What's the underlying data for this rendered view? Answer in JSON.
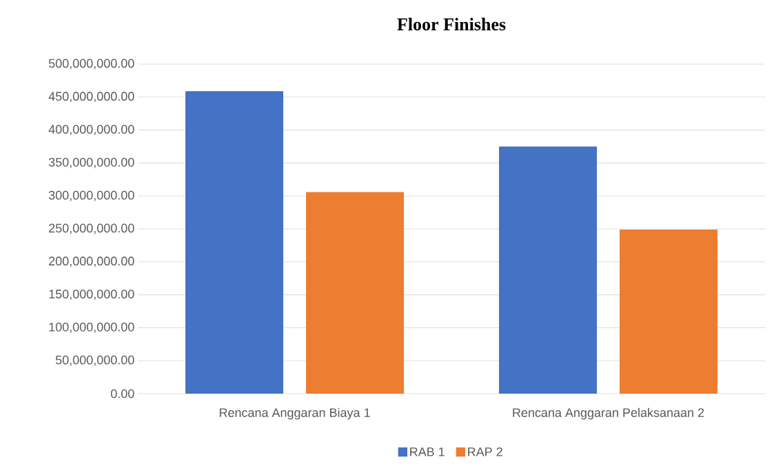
{
  "chart_data": {
    "type": "bar",
    "title": "Floor Finishes",
    "categories": [
      "Rencana Anggaran Biaya 1",
      "Rencana Anggaran Pelaksanaan 2"
    ],
    "series": [
      {
        "name": "RAB 1",
        "color": "#4472c4",
        "values": [
          459000000,
          375000000
        ]
      },
      {
        "name": "RAP 2",
        "color": "#ed7d31",
        "values": [
          306000000,
          249000000
        ]
      }
    ],
    "ylim": [
      0,
      500000000
    ],
    "yticks": [
      {
        "value": 0,
        "label": "0.00"
      },
      {
        "value": 50000000,
        "label": "50,000,000.00"
      },
      {
        "value": 100000000,
        "label": "100,000,000.00"
      },
      {
        "value": 150000000,
        "label": "150,000,000.00"
      },
      {
        "value": 200000000,
        "label": "200,000,000.00"
      },
      {
        "value": 250000000,
        "label": "250,000,000.00"
      },
      {
        "value": 300000000,
        "label": "300,000,000.00"
      },
      {
        "value": 350000000,
        "label": "350,000,000.00"
      },
      {
        "value": 400000000,
        "label": "400,000,000.00"
      },
      {
        "value": 450000000,
        "label": "450,000,000.00"
      },
      {
        "value": 500000000,
        "label": "500,000,000.00"
      }
    ],
    "grid": "y",
    "legend": "bottom"
  }
}
